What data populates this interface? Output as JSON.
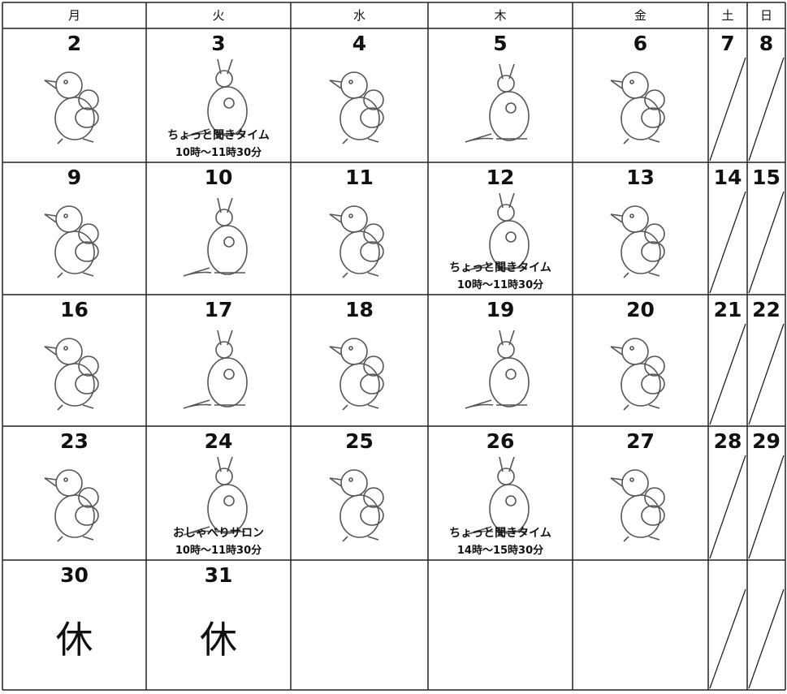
{
  "header": [
    "月",
    "火",
    "水",
    "木",
    "金",
    "土",
    "日"
  ],
  "weeks": [
    [
      {
        "day": 2
      },
      {
        "day": 3,
        "event": [
          "ちょっと聞きタイム",
          "10時～11時30分"
        ]
      },
      {
        "day": 4
      },
      {
        "day": 5
      },
      {
        "day": 6
      },
      {
        "day": 7
      },
      {
        "day": 8
      }
    ],
    [
      {
        "day": 9
      },
      {
        "day": 10
      },
      {
        "day": 11
      },
      {
        "day": 12,
        "event": [
          "ちょっと聞きタイム",
          "10時～11時30分"
        ]
      },
      {
        "day": 13
      },
      {
        "day": 14
      },
      {
        "day": 15
      }
    ],
    [
      {
        "day": 16
      },
      {
        "day": 17
      },
      {
        "day": 18
      },
      {
        "day": 19
      },
      {
        "day": 20
      },
      {
        "day": 21
      },
      {
        "day": 22
      }
    ],
    [
      {
        "day": 23
      },
      {
        "day": 24,
        "event": [
          "おしゃべりサロン",
          "10時～11時30分"
        ]
      },
      {
        "day": 25
      },
      {
        "day": 26,
        "event": [
          "ちょっと聞きタイム",
          "14時～15時30分"
        ]
      },
      {
        "day": 27
      },
      {
        "day": 28
      },
      {
        "day": 29
      }
    ],
    [
      {
        "day": 30,
        "note": "休"
      },
      {
        "day": 31,
        "note": "休"
      },
      null,
      null,
      null,
      null,
      null
    ]
  ]
}
